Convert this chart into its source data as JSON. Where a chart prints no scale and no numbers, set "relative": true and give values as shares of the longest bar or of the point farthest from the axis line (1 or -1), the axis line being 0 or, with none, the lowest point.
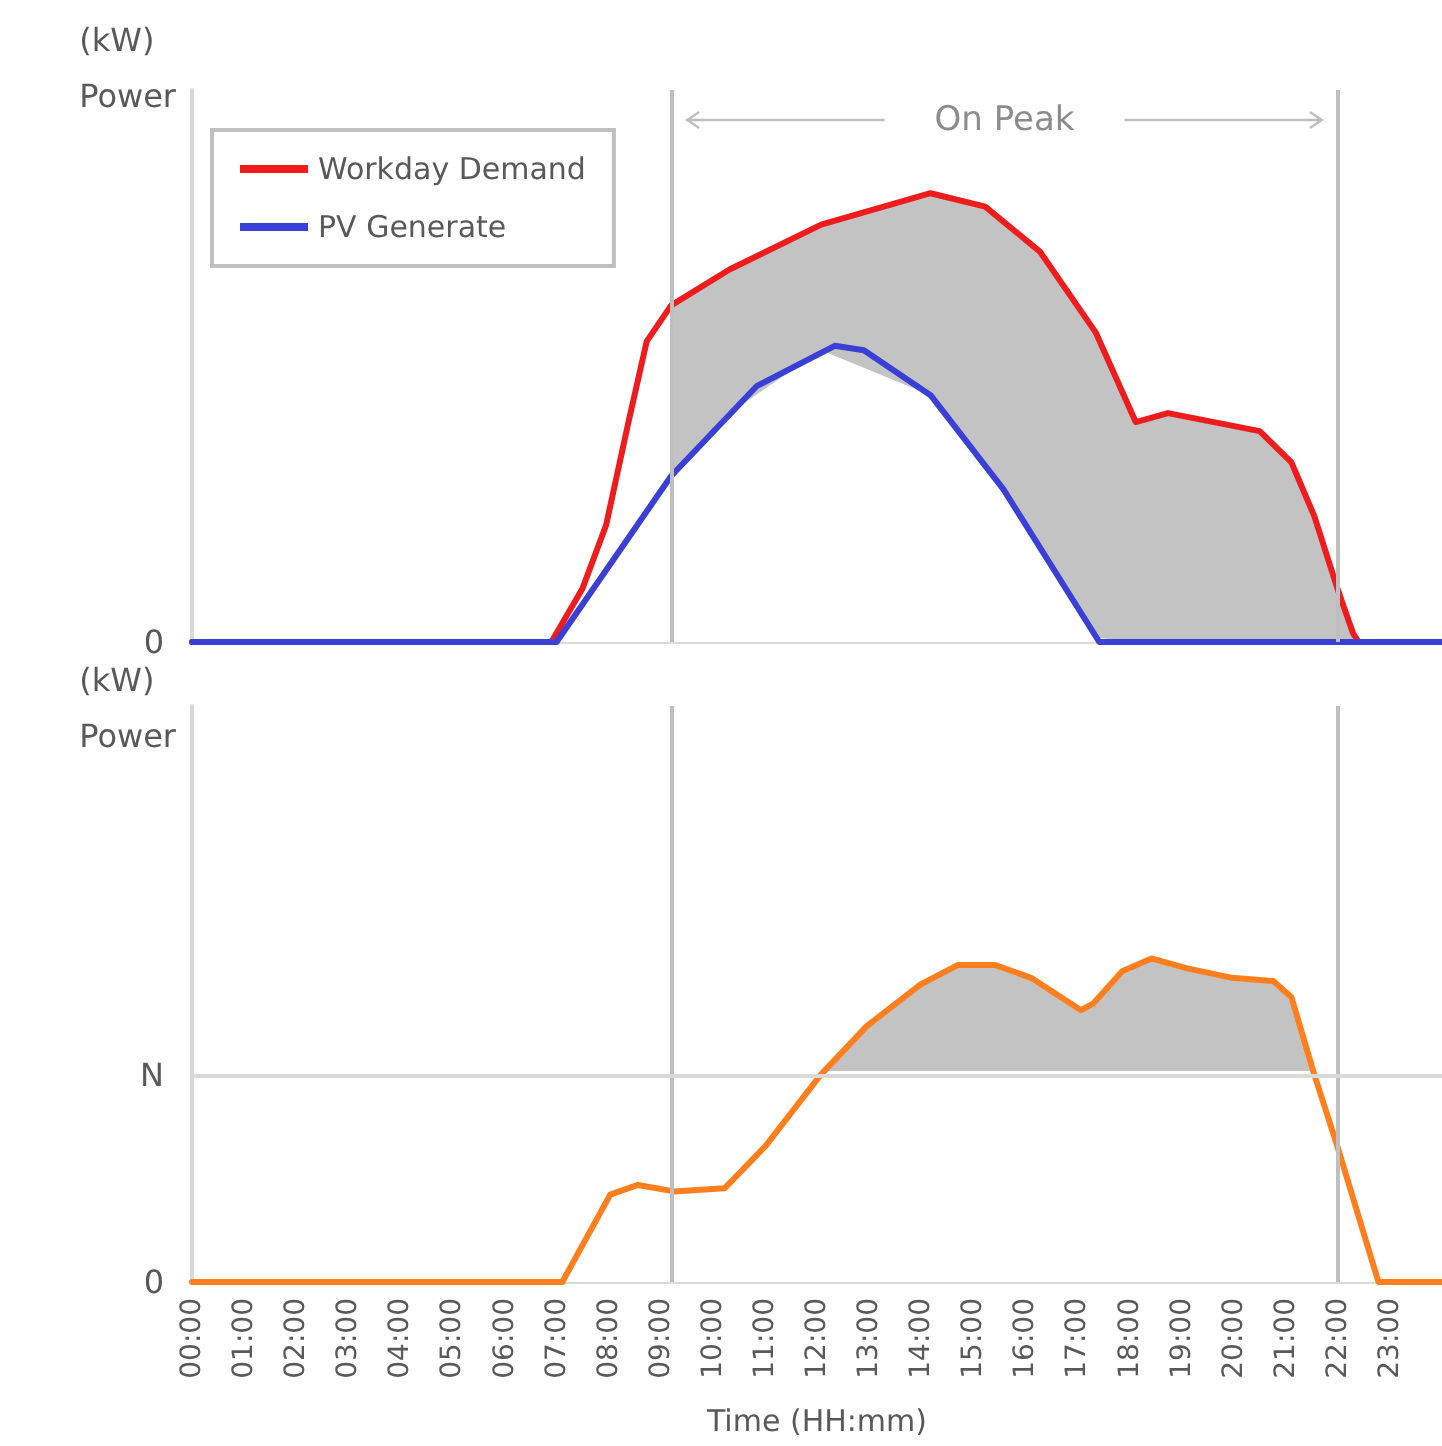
{
  "chart_data": [
    {
      "type": "line",
      "ylabel": "(kW)\nPower",
      "relative": true,
      "xlim": [
        0,
        24
      ],
      "tick_labels": false,
      "legend": "top left",
      "marker": "none",
      "line_style": "solid",
      "series": [
        {
          "name": "Workday Demand",
          "color": "#ee1c1c",
          "x": [
            0,
            6.9,
            7.5,
            7.95,
            8.38,
            8.73,
            9.2,
            10.32,
            12.08,
            14.18,
            15.23,
            16.28,
            17.35,
            18.12,
            18.74,
            19.62,
            20.5,
            21.11,
            21.55,
            21.99,
            22.29,
            22.4,
            24
          ],
          "values": [
            0,
            0,
            0.12,
            0.26,
            0.49,
            0.67,
            0.75,
            0.83,
            0.93,
            1,
            0.97,
            0.87,
            0.69,
            0.49,
            0.51,
            0.49,
            0.47,
            0.4,
            0.28,
            0.12,
            0.02,
            0,
            0
          ],
          "upper": [
            null,
            null,
            null,
            null,
            null,
            null,
            0.75,
            0.83,
            0.93,
            1,
            0.97,
            0.87,
            0.69,
            0.49,
            0.51,
            0.49,
            0.47,
            0.4,
            0.28,
            0.12,
            0.02,
            null,
            null
          ],
          "lower": [
            null,
            null,
            null,
            null,
            null,
            null,
            0.37,
            0.51,
            0.65,
            0.55,
            0.39,
            0.21,
            0.01,
            0,
            0,
            0,
            0,
            0,
            0,
            0,
            0,
            null,
            null
          ]
        },
        {
          "name": "PV Generate",
          "color": "#3a3fd6",
          "x": [
            0,
            7,
            9.2,
            10.84,
            12.34,
            12.9,
            14.18,
            15.58,
            17.42,
            24
          ],
          "values": [
            0,
            0,
            0.37,
            0.57,
            0.66,
            0.65,
            0.55,
            0.34,
            0,
            0
          ]
        }
      ],
      "ref_lines": [
        {
          "axis": "x",
          "value": 9.2,
          "color": "#bfbfbf"
        },
        {
          "axis": "x",
          "value": 22,
          "color": "#bfbfbf"
        }
      ],
      "annotations": [
        "0",
        "On Peak"
      ]
    },
    {
      "type": "line",
      "ylabel": "(kW)\nPower",
      "xlabel": "Time (HH:mm)",
      "relative": true,
      "xlim": [
        0,
        24
      ],
      "tick_labels": "x",
      "marker": "none",
      "line_style": "solid",
      "xticks": [
        {
          "value": 0,
          "label": "00:00"
        },
        {
          "value": 1,
          "label": "01:00"
        },
        {
          "value": 2,
          "label": "02:00"
        },
        {
          "value": 3,
          "label": "03:00"
        },
        {
          "value": 4,
          "label": "04:00"
        },
        {
          "value": 5,
          "label": "05:00"
        },
        {
          "value": 6,
          "label": "06:00"
        },
        {
          "value": 7,
          "label": "07:00"
        },
        {
          "value": 8,
          "label": "08:00"
        },
        {
          "value": 9,
          "label": "09:00"
        },
        {
          "value": 10,
          "label": "10:00"
        },
        {
          "value": 11,
          "label": "11:00"
        },
        {
          "value": 12,
          "label": "12:00"
        },
        {
          "value": 13,
          "label": "13:00"
        },
        {
          "value": 14,
          "label": "14:00"
        },
        {
          "value": 15,
          "label": "15:00"
        },
        {
          "value": 16,
          "label": "16:00"
        },
        {
          "value": 17,
          "label": "17:00"
        },
        {
          "value": 18,
          "label": "18:00"
        },
        {
          "value": 19,
          "label": "19:00"
        },
        {
          "value": 20,
          "label": "20:00"
        },
        {
          "value": 21,
          "label": "21:00"
        },
        {
          "value": 22,
          "label": "22:00"
        },
        {
          "value": 23,
          "label": "23:00"
        }
      ],
      "series": [
        {
          "color": "#ff7f1e",
          "x": [
            0,
            7.11,
            8.03,
            8.56,
            9.26,
            10.23,
            11.01,
            12.07,
            12.95,
            13.99,
            14.71,
            15.41,
            16.11,
            17.07,
            17.3,
            17.86,
            18.42,
            19.09,
            19.97,
            20.76,
            21.11,
            21.55,
            21.99,
            22.78,
            24
          ],
          "values": [
            0,
            0,
            0.27,
            0.3,
            0.28,
            0.29,
            0.42,
            0.64,
            0.79,
            0.92,
            0.98,
            0.98,
            0.94,
            0.84,
            0.86,
            0.96,
            1,
            0.97,
            0.94,
            0.93,
            0.88,
            0.64,
            0.42,
            0,
            0
          ],
          "upper": [
            null,
            null,
            null,
            null,
            null,
            null,
            null,
            0.64,
            0.79,
            0.92,
            0.98,
            0.98,
            0.94,
            0.84,
            0.86,
            0.96,
            1,
            0.97,
            0.94,
            0.93,
            0.88,
            0.64,
            null,
            null,
            null
          ],
          "lower": [
            null,
            null,
            null,
            null,
            null,
            null,
            null,
            0.64,
            0.64,
            0.64,
            0.64,
            0.64,
            0.64,
            0.64,
            0.64,
            0.64,
            0.64,
            0.64,
            0.64,
            0.64,
            0.64,
            0.64,
            null,
            null,
            null
          ]
        }
      ],
      "ref_lines": [
        {
          "axis": "x",
          "value": 9.2,
          "color": "#bfbfbf"
        },
        {
          "axis": "x",
          "value": 22,
          "color": "#bfbfbf"
        },
        {
          "axis": "y",
          "value": 0.64,
          "label": "N",
          "color": "#d9d9d9"
        }
      ],
      "annotations": [
        "0"
      ]
    }
  ]
}
